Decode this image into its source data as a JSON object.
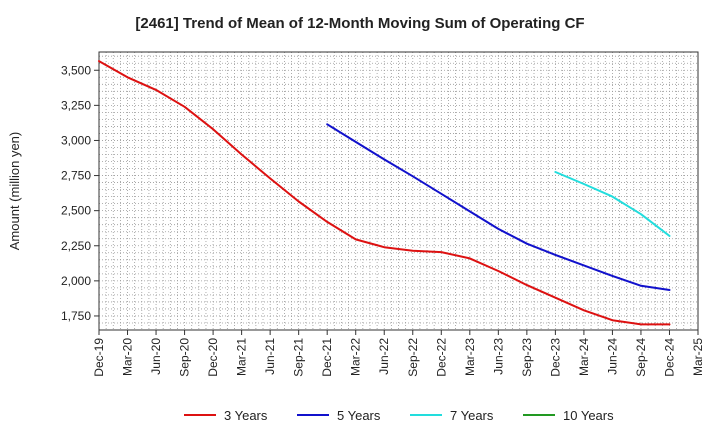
{
  "chart_data": {
    "type": "line",
    "title": "[2461]  Trend of Mean of 12-Month Moving Sum of Operating CF",
    "xlabel": "",
    "ylabel": "Amount (million yen)",
    "ylim": [
      1650,
      3630
    ],
    "yticks": [
      1750,
      2000,
      2250,
      2500,
      2750,
      3000,
      3250,
      3500
    ],
    "ytick_labels": [
      "1,750",
      "2,000",
      "2,250",
      "2,500",
      "2,750",
      "3,000",
      "3,250",
      "3,500"
    ],
    "x_categories": [
      "Dec-19",
      "Mar-20",
      "Jun-20",
      "Sep-20",
      "Dec-20",
      "Mar-21",
      "Jun-21",
      "Sep-21",
      "Dec-21",
      "Mar-22",
      "Jun-22",
      "Sep-22",
      "Dec-22",
      "Mar-23",
      "Jun-23",
      "Sep-23",
      "Dec-23",
      "Mar-24",
      "Jun-24",
      "Sep-24",
      "Dec-24",
      "Mar-25"
    ],
    "grid": true,
    "legend_position": "bottom",
    "series": [
      {
        "name": "3 Years",
        "color": "#dd1111",
        "start_index": 0,
        "values": [
          3565,
          3450,
          3360,
          3240,
          3080,
          2900,
          2730,
          2565,
          2420,
          2295,
          2240,
          2215,
          2205,
          2160,
          2070,
          1970,
          1880,
          1790,
          1720,
          1690,
          1690
        ]
      },
      {
        "name": "5 Years",
        "color": "#1111cc",
        "start_index": 8,
        "values": [
          3115,
          2990,
          2865,
          2745,
          2620,
          2495,
          2370,
          2265,
          2185,
          2110,
          2035,
          1965,
          1935
        ]
      },
      {
        "name": "7 Years",
        "color": "#22dddd",
        "start_index": 16,
        "values": [
          2775,
          2690,
          2600,
          2475,
          2320
        ]
      },
      {
        "name": "10 Years",
        "color": "#229922",
        "start_index": 0,
        "values": []
      }
    ]
  }
}
